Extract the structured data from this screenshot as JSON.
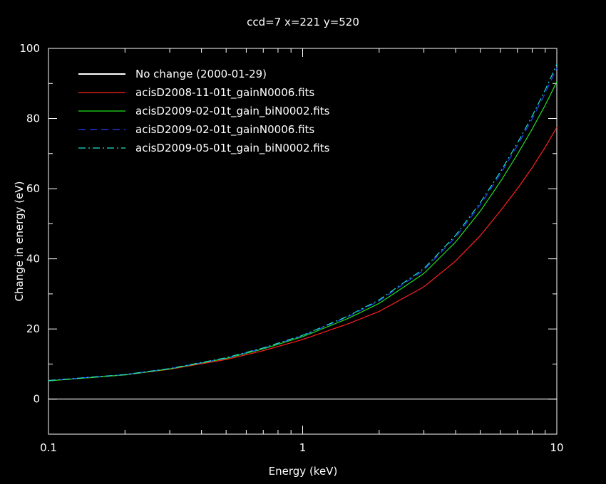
{
  "chart_data": {
    "type": "line",
    "title": "ccd=7 x=221 y=520",
    "xlabel": "Energy (keV)",
    "ylabel": "Change in energy (eV)",
    "xscale": "log",
    "xlim": [
      0.1,
      10
    ],
    "ylim": [
      -10,
      100
    ],
    "xticks": [
      {
        "value": 0.1,
        "label": "0.1"
      },
      {
        "value": 1,
        "label": "1"
      },
      {
        "value": 10,
        "label": "10"
      }
    ],
    "yticks": [
      {
        "value": 0,
        "label": "0"
      },
      {
        "value": 20,
        "label": "20"
      },
      {
        "value": 40,
        "label": "40"
      },
      {
        "value": 60,
        "label": "60"
      },
      {
        "value": 80,
        "label": "80"
      },
      {
        "value": 100,
        "label": "100"
      }
    ],
    "grid": false,
    "legend_position": "top-left",
    "colors": {
      "background": "#000000",
      "axes": "#ffffff"
    },
    "series": [
      {
        "name": "No change (2000-01-29)",
        "color": "#ffffff",
        "style": "solid",
        "x": [
          0.1,
          10
        ],
        "y": [
          0,
          0
        ]
      },
      {
        "name": "acisD2008-11-01t_gainN0006.fits",
        "color": "#ff2020",
        "style": "solid",
        "x": [
          0.1,
          0.2,
          0.3,
          0.5,
          0.7,
          1.0,
          1.5,
          2.0,
          3.0,
          4.0,
          5.0,
          6.0,
          7.0,
          8.0,
          9.0,
          10.0
        ],
        "y": [
          5.2,
          6.9,
          8.5,
          11.3,
          13.8,
          17.0,
          21.4,
          25.0,
          32.0,
          39.4,
          46.6,
          53.7,
          60.0,
          66.0,
          71.8,
          77.5
        ]
      },
      {
        "name": "acisD2009-02-01t_gain_biN0002.fits",
        "color": "#20e020",
        "style": "solid",
        "x": [
          0.1,
          0.2,
          0.3,
          0.5,
          0.7,
          1.0,
          1.5,
          2.0,
          3.0,
          4.0,
          5.0,
          6.0,
          7.0,
          8.0,
          9.0,
          10.0
        ],
        "y": [
          5.2,
          6.9,
          8.6,
          11.6,
          14.3,
          17.8,
          22.9,
          27.3,
          35.8,
          44.8,
          53.6,
          62.0,
          69.8,
          77.0,
          83.8,
          90.5
        ]
      },
      {
        "name": "acisD2009-02-01t_gainN0006.fits",
        "color": "#2040ff",
        "style": "dashed",
        "x": [
          0.1,
          0.2,
          0.3,
          0.5,
          0.7,
          1.0,
          1.5,
          2.0,
          3.0,
          4.0,
          5.0,
          6.0,
          7.0,
          8.0,
          9.0,
          10.0
        ],
        "y": [
          5.3,
          7.0,
          8.7,
          11.7,
          14.5,
          18.1,
          23.4,
          28.0,
          36.8,
          46.2,
          55.4,
          64.2,
          72.3,
          79.9,
          87.2,
          94.4
        ]
      },
      {
        "name": "acisD2009-05-01t_gain_biN0002.fits",
        "color": "#20e0c8",
        "style": "dashdot",
        "x": [
          0.1,
          0.2,
          0.3,
          0.5,
          0.7,
          1.0,
          1.5,
          2.0,
          3.0,
          4.0,
          5.0,
          6.0,
          7.0,
          8.0,
          9.0,
          10.0
        ],
        "y": [
          5.3,
          7.0,
          8.7,
          11.8,
          14.6,
          18.2,
          23.6,
          28.3,
          37.2,
          46.7,
          56.0,
          64.8,
          73.0,
          80.7,
          88.1,
          95.5
        ]
      }
    ]
  }
}
